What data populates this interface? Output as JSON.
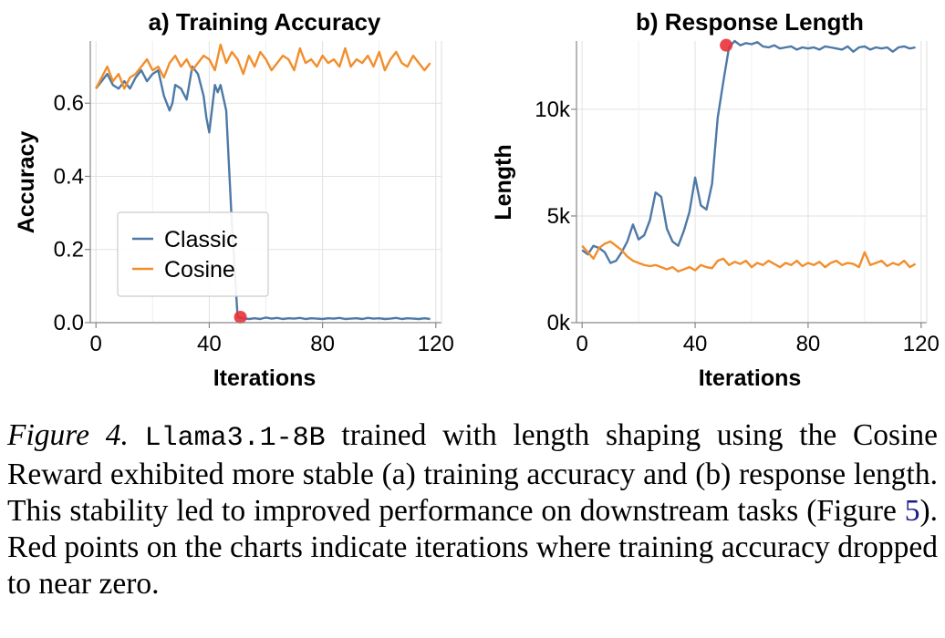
{
  "colors": {
    "classic": "#4e79a7",
    "cosine": "#f28e2b",
    "marker": "#e8333a",
    "grid": "#e2e2e2",
    "axis": "#888888"
  },
  "chart_data": [
    {
      "type": "line",
      "title": "a) Training Accuracy",
      "xlabel": "Iterations",
      "ylabel": "Accuracy",
      "xlim": [
        -2,
        122
      ],
      "ylim": [
        0,
        0.77
      ],
      "xticks": [
        0,
        40,
        80,
        120
      ],
      "xtick_labels": [
        "0",
        "40",
        "80",
        "120"
      ],
      "yticks": [
        0,
        0.2,
        0.4,
        0.6
      ],
      "ytick_labels": [
        "0.0",
        "0.2",
        "0.4",
        "0.6"
      ],
      "grid": true,
      "legend_position": "lower-left",
      "series": [
        {
          "name": "Classic",
          "color_key": "classic",
          "x": [
            0,
            2,
            4,
            6,
            8,
            9,
            10,
            12,
            14,
            16,
            18,
            20,
            22,
            24,
            26,
            27,
            28,
            30,
            32,
            34,
            36,
            38,
            39,
            40,
            42,
            43,
            44,
            46,
            48,
            50,
            52,
            54,
            56,
            58,
            60,
            62,
            64,
            66,
            68,
            70,
            72,
            74,
            76,
            78,
            80,
            82,
            84,
            86,
            88,
            90,
            92,
            94,
            96,
            98,
            100,
            102,
            104,
            106,
            108,
            110,
            112,
            114,
            116,
            118
          ],
          "values": [
            0.64,
            0.66,
            0.68,
            0.65,
            0.64,
            0.65,
            0.66,
            0.64,
            0.67,
            0.69,
            0.66,
            0.68,
            0.69,
            0.62,
            0.58,
            0.6,
            0.65,
            0.64,
            0.61,
            0.7,
            0.68,
            0.62,
            0.56,
            0.52,
            0.65,
            0.63,
            0.65,
            0.58,
            0.27,
            0.015,
            0.012,
            0.01,
            0.012,
            0.01,
            0.014,
            0.011,
            0.013,
            0.01,
            0.012,
            0.011,
            0.013,
            0.01,
            0.012,
            0.011,
            0.01,
            0.012,
            0.011,
            0.013,
            0.01,
            0.011,
            0.012,
            0.01,
            0.013,
            0.011,
            0.012,
            0.01,
            0.011,
            0.013,
            0.01,
            0.012,
            0.011,
            0.01,
            0.012,
            0.01
          ]
        },
        {
          "name": "Cosine",
          "color_key": "cosine",
          "x": [
            0,
            2,
            4,
            6,
            8,
            10,
            12,
            14,
            16,
            18,
            20,
            22,
            24,
            26,
            28,
            30,
            32,
            34,
            36,
            38,
            40,
            42,
            44,
            46,
            48,
            50,
            52,
            54,
            56,
            58,
            60,
            62,
            64,
            66,
            68,
            70,
            72,
            74,
            76,
            78,
            80,
            82,
            84,
            86,
            88,
            90,
            92,
            94,
            96,
            98,
            100,
            102,
            104,
            106,
            108,
            110,
            112,
            114,
            116,
            118
          ],
          "values": [
            0.64,
            0.67,
            0.7,
            0.66,
            0.68,
            0.64,
            0.67,
            0.68,
            0.7,
            0.72,
            0.69,
            0.7,
            0.67,
            0.71,
            0.73,
            0.7,
            0.72,
            0.69,
            0.71,
            0.73,
            0.72,
            0.69,
            0.76,
            0.71,
            0.74,
            0.72,
            0.68,
            0.73,
            0.7,
            0.74,
            0.72,
            0.69,
            0.71,
            0.73,
            0.72,
            0.69,
            0.75,
            0.71,
            0.72,
            0.7,
            0.73,
            0.71,
            0.72,
            0.7,
            0.75,
            0.7,
            0.72,
            0.71,
            0.73,
            0.7,
            0.74,
            0.69,
            0.72,
            0.74,
            0.71,
            0.7,
            0.73,
            0.71,
            0.69,
            0.71
          ]
        }
      ],
      "markers": [
        {
          "x": 51,
          "y": 0.015,
          "color_key": "marker"
        }
      ]
    },
    {
      "type": "line",
      "title": "b) Response Length",
      "xlabel": "Iterations",
      "ylabel": "Length",
      "xlim": [
        -2,
        122
      ],
      "ylim": [
        0,
        13200
      ],
      "xticks": [
        0,
        40,
        80,
        120
      ],
      "xtick_labels": [
        "0",
        "40",
        "80",
        "120"
      ],
      "yticks": [
        0,
        5000,
        10000
      ],
      "ytick_labels": [
        "0k",
        "5k",
        "10k"
      ],
      "grid": true,
      "series": [
        {
          "name": "Classic",
          "color_key": "classic",
          "x": [
            0,
            2,
            4,
            6,
            8,
            10,
            12,
            14,
            16,
            18,
            20,
            22,
            24,
            26,
            28,
            30,
            32,
            34,
            36,
            38,
            40,
            42,
            44,
            46,
            48,
            50,
            52,
            54,
            56,
            58,
            60,
            62,
            64,
            66,
            68,
            70,
            72,
            74,
            76,
            78,
            80,
            82,
            84,
            86,
            88,
            90,
            92,
            94,
            96,
            98,
            100,
            102,
            104,
            106,
            108,
            110,
            112,
            114,
            116,
            118
          ],
          "values": [
            3400,
            3200,
            3600,
            3500,
            3300,
            2800,
            2900,
            3300,
            3800,
            4600,
            3900,
            4100,
            4800,
            6100,
            5900,
            4400,
            3800,
            3600,
            4300,
            5200,
            6800,
            5500,
            5300,
            6500,
            9600,
            11300,
            12900,
            13200,
            13000,
            13100,
            13050,
            13150,
            12950,
            12900,
            13000,
            12850,
            12900,
            12950,
            12800,
            12900,
            12850,
            12900,
            12800,
            12950,
            12900,
            12850,
            12800,
            12950,
            12700,
            12900,
            12950,
            12800,
            12900,
            12850,
            12900,
            12700,
            12900,
            12950,
            12850,
            12900
          ]
        },
        {
          "name": "Cosine",
          "color_key": "cosine",
          "x": [
            0,
            2,
            4,
            6,
            8,
            10,
            12,
            14,
            16,
            18,
            20,
            22,
            24,
            26,
            28,
            30,
            32,
            34,
            36,
            38,
            40,
            42,
            44,
            46,
            48,
            50,
            52,
            54,
            56,
            58,
            60,
            62,
            64,
            66,
            68,
            70,
            72,
            74,
            76,
            78,
            80,
            82,
            84,
            86,
            88,
            90,
            92,
            94,
            96,
            98,
            100,
            102,
            104,
            106,
            108,
            110,
            112,
            114,
            116,
            118
          ],
          "values": [
            3600,
            3300,
            3000,
            3500,
            3700,
            3800,
            3600,
            3400,
            3100,
            2900,
            2800,
            2700,
            2650,
            2700,
            2600,
            2500,
            2600,
            2400,
            2500,
            2600,
            2450,
            2700,
            2600,
            2550,
            2900,
            3000,
            2700,
            2850,
            2750,
            2900,
            2600,
            2800,
            2700,
            2900,
            2750,
            2600,
            2800,
            2700,
            2900,
            2650,
            2800,
            2700,
            2850,
            2600,
            2800,
            2900,
            2700,
            2800,
            2750,
            2600,
            3300,
            2700,
            2800,
            2900,
            2650,
            2800,
            2700,
            2900,
            2600,
            2750
          ]
        }
      ],
      "markers": [
        {
          "x": 51,
          "y": 13000,
          "color_key": "marker"
        }
      ]
    }
  ],
  "caption": {
    "label": "Figure 4.",
    "model": "Llama3.1-8B",
    "text_part1": " trained with length shaping using the Cosine Reward exhibited more stable (a) training accuracy and (b) response length. This stability led to improved performance on downstream tasks (Figure ",
    "ref": "5",
    "text_part2": "). Red points on the charts indicate iterations where training accuracy dropped to near zero."
  }
}
